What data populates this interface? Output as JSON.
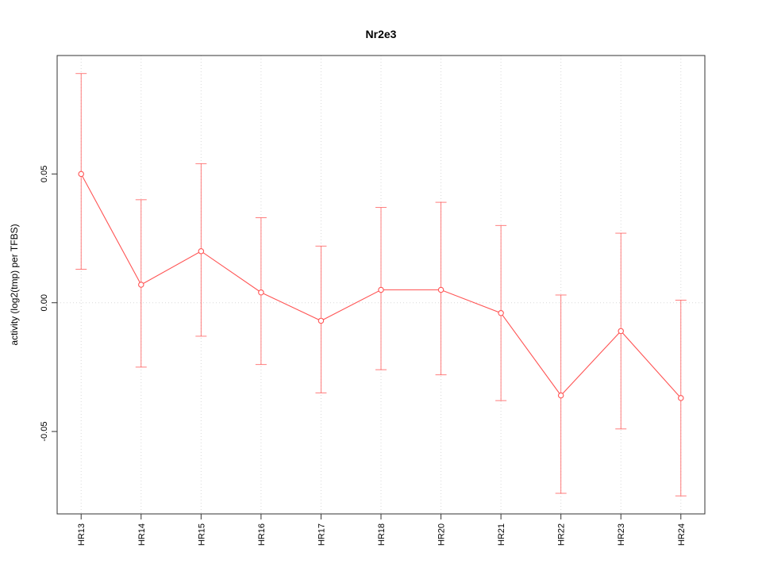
{
  "chart_data": {
    "type": "line",
    "title": "Nr2e3",
    "ylabel": "activity (log2(tmp) per TFBS)",
    "xlabel": "",
    "categories": [
      "HR13",
      "HR14",
      "HR15",
      "HR16",
      "HR17",
      "HR18",
      "HR20",
      "HR21",
      "HR22",
      "HR23",
      "HR24"
    ],
    "series": [
      {
        "name": "activity",
        "values": [
          0.05,
          0.007,
          0.02,
          0.004,
          -0.007,
          0.005,
          0.005,
          -0.004,
          -0.036,
          -0.011,
          -0.037
        ],
        "error_low": [
          0.013,
          -0.025,
          -0.013,
          -0.024,
          -0.035,
          -0.026,
          -0.028,
          -0.038,
          -0.074,
          -0.049,
          -0.075
        ],
        "error_high": [
          0.089,
          0.04,
          0.054,
          0.033,
          0.022,
          0.037,
          0.039,
          0.03,
          0.003,
          0.027,
          0.001
        ]
      }
    ],
    "yticks": [
      -0.05,
      0.0,
      0.05
    ],
    "ytick_labels": [
      "-0.05",
      "0.00",
      "0.05"
    ],
    "ylim": [
      -0.082,
      0.096
    ],
    "legend": "none",
    "grid": {
      "vertical_dotted_per_category": true,
      "horizontal_dotted_at_zero": true,
      "color": "#d8d8d8"
    },
    "colors": {
      "line": "#ff5555",
      "point_fill": "#ffffff",
      "axis": "#333333",
      "background": "#ffffff"
    },
    "point_style": "open-circle",
    "error_bar_style": "capped"
  }
}
